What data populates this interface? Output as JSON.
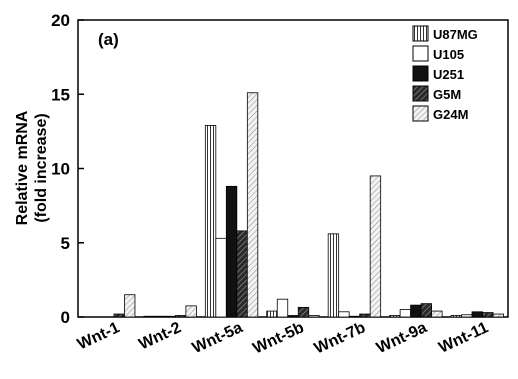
{
  "chart_data": {
    "type": "bar",
    "panel_label": "(a)",
    "title": "",
    "xlabel": "",
    "ylabel_lines": [
      "Relative mRNA",
      "(fold increase)"
    ],
    "ylim": [
      0,
      20
    ],
    "yticks": [
      0,
      5,
      10,
      15,
      20
    ],
    "categories": [
      "Wnt-1",
      "Wnt-2",
      "Wnt-5a",
      "Wnt-5b",
      "Wnt-7b",
      "Wnt-9a",
      "Wnt-11"
    ],
    "series": [
      {
        "name": "U87MG",
        "pattern": "vertical-lines",
        "values": [
          0.0,
          0.05,
          12.9,
          0.4,
          5.6,
          0.1,
          0.1
        ]
      },
      {
        "name": "U105",
        "pattern": "white",
        "values": [
          0.0,
          0.05,
          5.3,
          1.2,
          0.35,
          0.5,
          0.15
        ]
      },
      {
        "name": "U251",
        "pattern": "black",
        "values": [
          0.0,
          0.05,
          8.8,
          0.1,
          0.05,
          0.8,
          0.35
        ]
      },
      {
        "name": "G5M",
        "pattern": "dark-diagonal",
        "values": [
          0.2,
          0.1,
          5.8,
          0.65,
          0.2,
          0.9,
          0.3
        ]
      },
      {
        "name": "G24M",
        "pattern": "light-diagonal",
        "values": [
          1.5,
          0.75,
          15.1,
          0.1,
          9.5,
          0.4,
          0.2
        ]
      }
    ],
    "legend_position": "top-right",
    "grid": false
  }
}
